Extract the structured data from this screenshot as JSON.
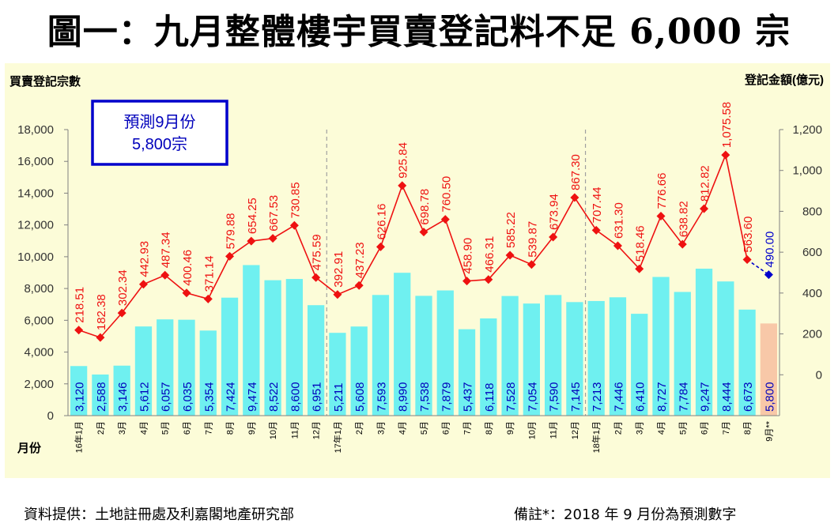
{
  "title": "圖一：九月整體樓宇買賣登記料不足 6,000 宗",
  "footer": {
    "source": "資料提供：土地註冊處及利嘉閣地產研究部",
    "note": "備註*：2018 年 9 月份為預測數字"
  },
  "forecast_box": {
    "line1": "預測9月份",
    "line2": "5,800宗"
  },
  "colors": {
    "bar": "#6ff0f0",
    "bar_forecast": "#f8c8a8",
    "line": "#ee1111",
    "marker": "#ee1111",
    "forecast_marker": "#0000cc",
    "label_bar": "#0000bb",
    "label_line": "#ee1111",
    "label_forecast": "#0000cc",
    "plot_bg": "#fcfcd8",
    "box_border": "#0000cc"
  },
  "chart_data": {
    "type": "bar",
    "ylabel_left": "買賣登記宗數",
    "ylabel_right": "登記金額(億元)",
    "xlabel": "月份",
    "ylim_left": [
      0,
      18000
    ],
    "ylim_right": [
      -200,
      1200
    ],
    "left_ticks": [
      "0",
      "2,000",
      "4,000",
      "6,000",
      "8,000",
      "10,000",
      "12,000",
      "14,000",
      "16,000",
      "18,000"
    ],
    "right_ticks": [
      "0",
      "200",
      "400",
      "600",
      "800",
      "1,000",
      "1,200"
    ],
    "categories": [
      "16年1月",
      "2月",
      "3月",
      "4月",
      "5月",
      "6月",
      "7月",
      "8月",
      "9月",
      "10月",
      "11月",
      "12月",
      "17年1月",
      "2月",
      "3月",
      "4月",
      "5月",
      "6月",
      "7月",
      "8月",
      "9月",
      "10月",
      "11月",
      "12月",
      "18年1月",
      "2月",
      "3月",
      "4月",
      "5月",
      "6月",
      "7月",
      "8月",
      "9月**"
    ],
    "series": [
      {
        "name": "買賣登記宗數",
        "axis": "left",
        "values": [
          3120,
          2588,
          3146,
          5612,
          6057,
          6035,
          5354,
          7424,
          9474,
          8522,
          8600,
          6951,
          5211,
          5608,
          7593,
          8990,
          7538,
          7879,
          5437,
          6118,
          7528,
          7054,
          7590,
          7145,
          7213,
          7446,
          6410,
          8727,
          7784,
          9247,
          8444,
          6673,
          5800
        ],
        "labels": [
          "3,120",
          "2,588",
          "3,146",
          "5,612",
          "6,057",
          "6,035",
          "5,354",
          "7,424",
          "9,474",
          "8,522",
          "8,600",
          "6,951",
          "5,211",
          "5,608",
          "7,593",
          "8,990",
          "7,538",
          "7,879",
          "5,437",
          "6,118",
          "7,528",
          "7,054",
          "7,590",
          "7,145",
          "7,213",
          "7,446",
          "6,410",
          "8,727",
          "7,784",
          "9,247",
          "8,444",
          "6,673",
          "5,800"
        ]
      },
      {
        "name": "登記金額(億元)",
        "axis": "right",
        "values": [
          218.51,
          182.38,
          302.34,
          442.93,
          487.34,
          400.46,
          371.14,
          579.88,
          654.25,
          667.53,
          730.85,
          475.59,
          392.91,
          437.23,
          626.16,
          925.84,
          698.78,
          760.5,
          458.9,
          466.31,
          585.22,
          539.87,
          673.94,
          867.3,
          707.44,
          631.3,
          518.46,
          776.66,
          638.82,
          812.82,
          1075.58,
          563.6,
          490.0
        ],
        "labels": [
          "218.51",
          "182.38",
          "302.34",
          "442.93",
          "487.34",
          "400.46",
          "371.14",
          "579.88",
          "654.25",
          "667.53",
          "730.85",
          "475.59",
          "392.91",
          "437.23",
          "626.16",
          "925.84",
          "698.78",
          "760.50",
          "458.90",
          "466.31",
          "585.22",
          "539.87",
          "673.94",
          "867.30",
          "707.44",
          "631.30",
          "518.46",
          "776.66",
          "638.82",
          "812.82",
          "1,075.58",
          "563.60",
          "490.00"
        ]
      }
    ],
    "forecast_index": 32,
    "year_dividers_after": [
      11,
      23
    ]
  }
}
